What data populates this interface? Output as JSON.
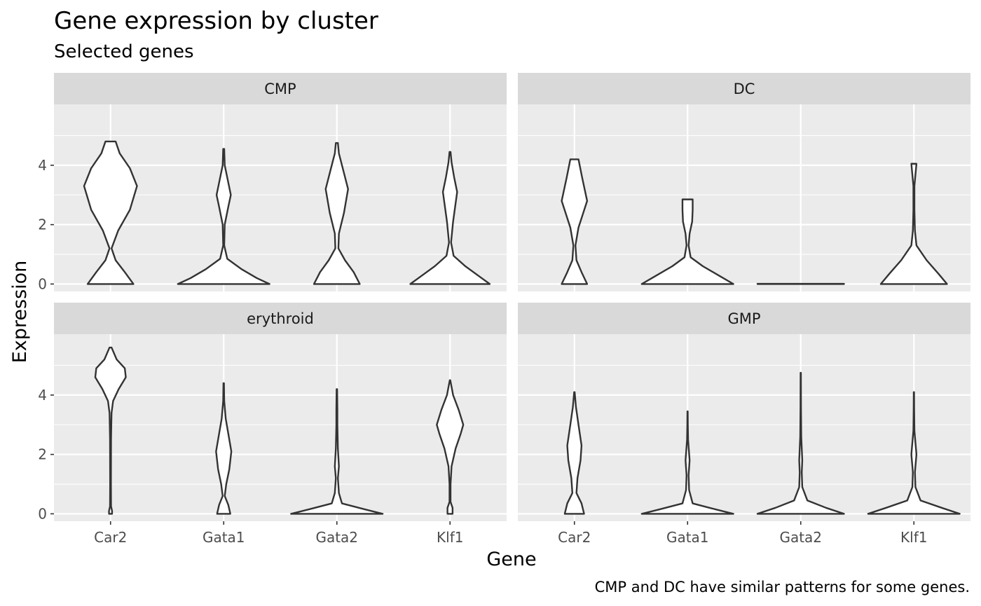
{
  "chart_data": {
    "type": "violin",
    "title": "Gene expression by cluster",
    "subtitle": "Selected genes",
    "xlabel": "Gene",
    "ylabel": "Expression",
    "caption": "CMP and DC have similar patterns for some genes.",
    "categories": [
      "Car2",
      "Gata1",
      "Gata2",
      "Klf1"
    ],
    "y_ticks": [
      0,
      2,
      4
    ],
    "ylim": [
      -0.25,
      6.05
    ],
    "facet_layout": "2x2",
    "grid": true,
    "colors": {
      "panel_bg": "#ebebeb",
      "strip_bg": "#d9d9d9",
      "grid": "#ffffff",
      "violin_fill": "#ffffff",
      "violin_stroke": "#333333"
    },
    "panels": [
      {
        "cluster": "CMP",
        "violins": [
          {
            "gene": "Car2",
            "max_y": 4.8,
            "profile": [
              [
                0,
                0.45
              ],
              [
                0.4,
                0.28
              ],
              [
                0.8,
                0.1
              ],
              [
                1.2,
                0.02
              ],
              [
                1.8,
                0.15
              ],
              [
                2.5,
                0.38
              ],
              [
                3.3,
                0.52
              ],
              [
                3.9,
                0.38
              ],
              [
                4.4,
                0.18
              ],
              [
                4.8,
                0.1
              ]
            ]
          },
          {
            "gene": "Gata1",
            "max_y": 4.55,
            "profile": [
              [
                0,
                0.9
              ],
              [
                0.2,
                0.65
              ],
              [
                0.5,
                0.35
              ],
              [
                0.85,
                0.07
              ],
              [
                1.3,
                0.01
              ],
              [
                2.0,
                0.02
              ],
              [
                2.6,
                0.09
              ],
              [
                3.0,
                0.14
              ],
              [
                3.5,
                0.08
              ],
              [
                4.0,
                0.02
              ],
              [
                4.55,
                0.01
              ]
            ]
          },
          {
            "gene": "Gata2",
            "max_y": 4.75,
            "profile": [
              [
                0,
                0.45
              ],
              [
                0.4,
                0.33
              ],
              [
                0.8,
                0.16
              ],
              [
                1.2,
                0.03
              ],
              [
                1.7,
                0.04
              ],
              [
                2.4,
                0.14
              ],
              [
                3.2,
                0.22
              ],
              [
                3.8,
                0.13
              ],
              [
                4.4,
                0.04
              ],
              [
                4.75,
                0.02
              ]
            ]
          },
          {
            "gene": "Klf1",
            "max_y": 4.45,
            "profile": [
              [
                0,
                0.78
              ],
              [
                0.25,
                0.58
              ],
              [
                0.6,
                0.3
              ],
              [
                0.95,
                0.07
              ],
              [
                1.4,
                0.02
              ],
              [
                2.1,
                0.06
              ],
              [
                2.6,
                0.1
              ],
              [
                3.1,
                0.14
              ],
              [
                3.6,
                0.08
              ],
              [
                4.1,
                0.03
              ],
              [
                4.45,
                0.01
              ]
            ]
          }
        ]
      },
      {
        "cluster": "DC",
        "violins": [
          {
            "gene": "Car2",
            "max_y": 4.2,
            "profile": [
              [
                0,
                0.25
              ],
              [
                0.4,
                0.14
              ],
              [
                0.8,
                0.04
              ],
              [
                1.3,
                0.02
              ],
              [
                1.9,
                0.08
              ],
              [
                2.8,
                0.25
              ],
              [
                3.6,
                0.15
              ],
              [
                4.2,
                0.08
              ]
            ]
          },
          {
            "gene": "Gata1",
            "max_y": 2.85,
            "profile": [
              [
                0,
                0.9
              ],
              [
                0.25,
                0.65
              ],
              [
                0.6,
                0.3
              ],
              [
                0.9,
                0.06
              ],
              [
                1.3,
                0.02
              ],
              [
                1.7,
                0.04
              ],
              [
                2.1,
                0.09
              ],
              [
                2.5,
                0.1
              ],
              [
                2.85,
                0.1
              ]
            ]
          },
          {
            "gene": "Gata2",
            "max_y": 0.008,
            "profile": [
              [
                0,
                0.85
              ],
              [
                0.008,
                0.85
              ]
            ]
          },
          {
            "gene": "Klf1",
            "max_y": 4.05,
            "profile": [
              [
                0,
                0.65
              ],
              [
                0.35,
                0.48
              ],
              [
                0.8,
                0.25
              ],
              [
                1.3,
                0.05
              ],
              [
                1.8,
                0.02
              ],
              [
                2.5,
                0.01
              ],
              [
                3.3,
                0.01
              ],
              [
                4.05,
                0.05
              ]
            ]
          }
        ]
      },
      {
        "cluster": "erythroid",
        "violins": [
          {
            "gene": "Car2",
            "max_y": 5.6,
            "profile": [
              [
                0,
                0.03
              ],
              [
                0.1,
                0.03
              ],
              [
                0.25,
                0.01
              ],
              [
                1.0,
                0.008
              ],
              [
                2.5,
                0.01
              ],
              [
                3.0,
                0.015
              ],
              [
                3.4,
                0.02
              ],
              [
                3.8,
                0.05
              ],
              [
                4.2,
                0.16
              ],
              [
                4.6,
                0.3
              ],
              [
                4.9,
                0.28
              ],
              [
                5.2,
                0.12
              ],
              [
                5.6,
                0.02
              ]
            ]
          },
          {
            "gene": "Gata1",
            "max_y": 4.4,
            "profile": [
              [
                0,
                0.13
              ],
              [
                0.3,
                0.09
              ],
              [
                0.6,
                0.02
              ],
              [
                1.0,
                0.05
              ],
              [
                1.5,
                0.11
              ],
              [
                2.1,
                0.15
              ],
              [
                2.6,
                0.1
              ],
              [
                3.2,
                0.04
              ],
              [
                3.8,
                0.01
              ],
              [
                4.4,
                0.005
              ]
            ]
          },
          {
            "gene": "Gata2",
            "max_y": 4.2,
            "profile": [
              [
                0,
                0.9
              ],
              [
                0.15,
                0.55
              ],
              [
                0.35,
                0.1
              ],
              [
                0.7,
                0.04
              ],
              [
                1.2,
                0.02
              ],
              [
                1.6,
                0.04
              ],
              [
                2.2,
                0.02
              ],
              [
                3.0,
                0.01
              ],
              [
                3.5,
                0.01
              ],
              [
                4.2,
                0.005
              ]
            ]
          },
          {
            "gene": "Klf1",
            "max_y": 4.5,
            "profile": [
              [
                0,
                0.05
              ],
              [
                0.2,
                0.05
              ],
              [
                0.4,
                0.01
              ],
              [
                1.0,
                0.01
              ],
              [
                1.6,
                0.03
              ],
              [
                2.2,
                0.11
              ],
              [
                2.7,
                0.21
              ],
              [
                3.0,
                0.26
              ],
              [
                3.5,
                0.17
              ],
              [
                4.0,
                0.06
              ],
              [
                4.5,
                0.005
              ]
            ]
          }
        ]
      },
      {
        "cluster": "GMP",
        "violins": [
          {
            "gene": "Car2",
            "max_y": 4.1,
            "profile": [
              [
                0,
                0.19
              ],
              [
                0.35,
                0.14
              ],
              [
                0.7,
                0.04
              ],
              [
                1.2,
                0.06
              ],
              [
                1.8,
                0.12
              ],
              [
                2.3,
                0.14
              ],
              [
                3.0,
                0.08
              ],
              [
                3.6,
                0.03
              ],
              [
                4.1,
                0.005
              ]
            ]
          },
          {
            "gene": "Gata1",
            "max_y": 3.45,
            "profile": [
              [
                0,
                0.9
              ],
              [
                0.15,
                0.55
              ],
              [
                0.35,
                0.1
              ],
              [
                0.8,
                0.03
              ],
              [
                1.3,
                0.02
              ],
              [
                1.8,
                0.04
              ],
              [
                2.5,
                0.01
              ],
              [
                3.0,
                0.005
              ],
              [
                3.45,
                0.003
              ]
            ]
          },
          {
            "gene": "Gata2",
            "max_y": 4.75,
            "profile": [
              [
                0,
                0.85
              ],
              [
                0.2,
                0.5
              ],
              [
                0.45,
                0.13
              ],
              [
                0.9,
                0.03
              ],
              [
                1.4,
                0.02
              ],
              [
                1.8,
                0.03
              ],
              [
                2.6,
                0.01
              ],
              [
                3.6,
                0.005
              ],
              [
                4.75,
                0.003
              ]
            ]
          },
          {
            "gene": "Klf1",
            "max_y": 4.1,
            "profile": [
              [
                0,
                0.9
              ],
              [
                0.2,
                0.55
              ],
              [
                0.45,
                0.13
              ],
              [
                0.9,
                0.03
              ],
              [
                1.4,
                0.02
              ],
              [
                2.0,
                0.05
              ],
              [
                2.8,
                0.01
              ],
              [
                3.5,
                0.005
              ],
              [
                4.1,
                0.003
              ]
            ]
          }
        ]
      }
    ]
  }
}
